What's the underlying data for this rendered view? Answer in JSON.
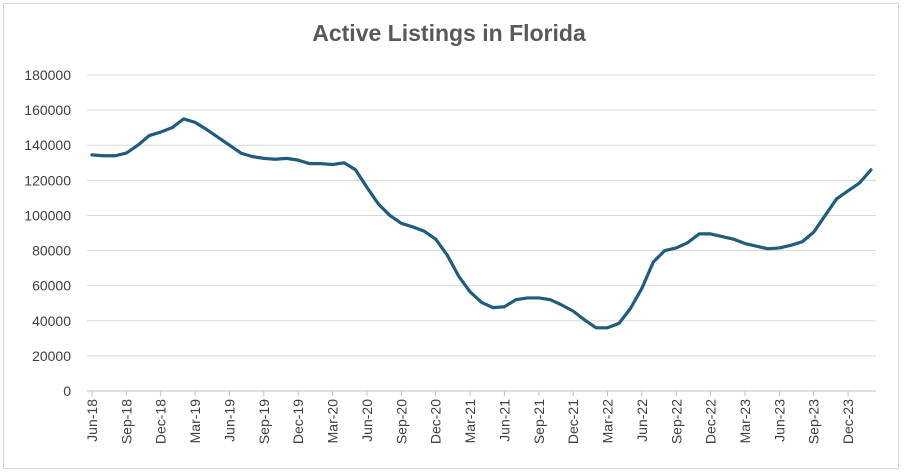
{
  "chart_data": {
    "type": "line",
    "title": "Active Listings in Florida",
    "xlabel": "",
    "ylabel": "",
    "ylim": [
      0,
      180000
    ],
    "yticks": [
      "0",
      "20000",
      "40000",
      "60000",
      "80000",
      "100000",
      "120000",
      "140000",
      "160000",
      "180000"
    ],
    "grid": "horizontal",
    "legend": "none",
    "x_tick_labels": [
      "Jun-18",
      "Sep-18",
      "Dec-18",
      "Mar-19",
      "Jun-19",
      "Sep-19",
      "Dec-19",
      "Mar-20",
      "Jun-20",
      "Sep-20",
      "Dec-20",
      "Mar-21",
      "Jun-21",
      "Sep-21",
      "Dec-21",
      "Mar-22",
      "Jun-22",
      "Sep-22",
      "Dec-22",
      "Mar-23",
      "Jun-23",
      "Sep-23",
      "Dec-23"
    ],
    "x": [
      "Jun-18",
      "Jul-18",
      "Aug-18",
      "Sep-18",
      "Oct-18",
      "Nov-18",
      "Dec-18",
      "Jan-19",
      "Feb-19",
      "Mar-19",
      "Apr-19",
      "May-19",
      "Jun-19",
      "Jul-19",
      "Aug-19",
      "Sep-19",
      "Oct-19",
      "Nov-19",
      "Dec-19",
      "Jan-20",
      "Feb-20",
      "Mar-20",
      "Apr-20",
      "May-20",
      "Jun-20",
      "Jul-20",
      "Aug-20",
      "Sep-20",
      "Oct-20",
      "Nov-20",
      "Dec-20",
      "Jan-21",
      "Feb-21",
      "Mar-21",
      "Apr-21",
      "May-21",
      "Jun-21",
      "Jul-21",
      "Aug-21",
      "Sep-21",
      "Oct-21",
      "Nov-21",
      "Dec-21",
      "Jan-22",
      "Feb-22",
      "Mar-22",
      "Apr-22",
      "May-22",
      "Jun-22",
      "Jul-22",
      "Aug-22",
      "Sep-22",
      "Oct-22",
      "Nov-22",
      "Dec-22",
      "Jan-23",
      "Feb-23",
      "Mar-23",
      "Apr-23",
      "May-23",
      "Jun-23",
      "Jul-23",
      "Aug-23",
      "Sep-23",
      "Oct-23",
      "Nov-23",
      "Dec-23",
      "Jan-24",
      "Feb-24"
    ],
    "series": [
      {
        "color": "#1f5c7e",
        "values": [
          134500,
          134000,
          134000,
          135500,
          140000,
          145500,
          147500,
          150000,
          155000,
          153000,
          149000,
          144500,
          140000,
          135500,
          133500,
          132500,
          132000,
          132500,
          131500,
          129500,
          129500,
          129000,
          130000,
          126000,
          116000,
          106500,
          100000,
          95500,
          93500,
          91000,
          86500,
          77500,
          65500,
          56500,
          50500,
          47500,
          48000,
          52000,
          53000,
          53000,
          52000,
          49000,
          45500,
          40500,
          36000,
          36000,
          38500,
          47000,
          58500,
          73500,
          80000,
          81500,
          84500,
          89500,
          89500,
          88000,
          86500,
          84000,
          82500,
          81000,
          81500,
          83000,
          85000,
          90500,
          100000,
          109500,
          114000,
          118500,
          126000
        ]
      }
    ]
  }
}
